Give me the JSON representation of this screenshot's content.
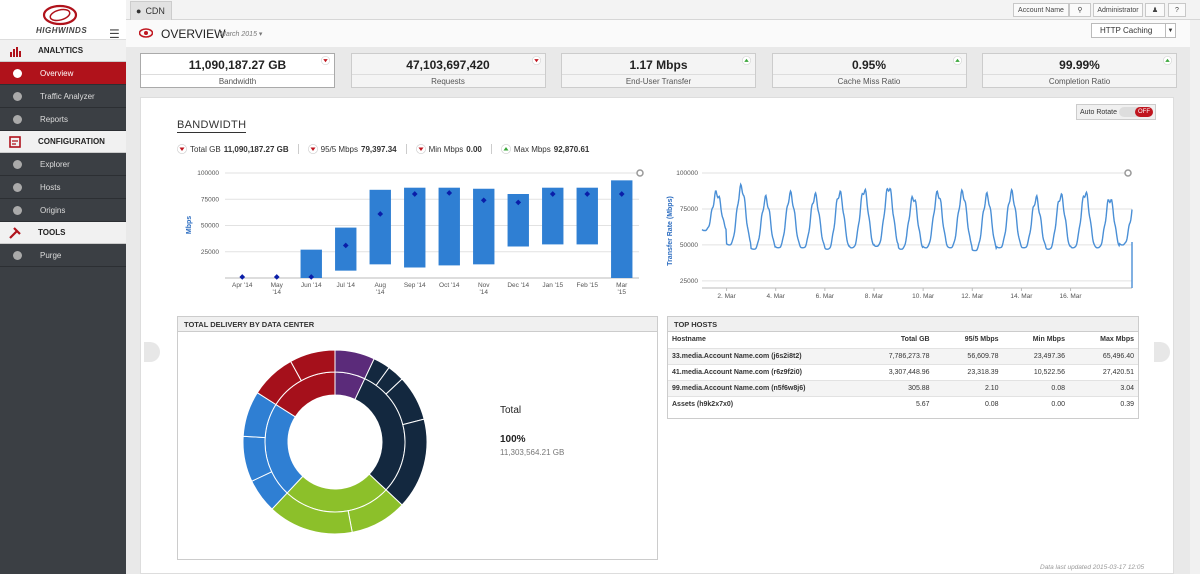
{
  "sidebar": {
    "logo_text": "HIGHWINDS",
    "sections": [
      {
        "label": "ANALYTICS",
        "icon": "bar-chart-icon",
        "items": [
          {
            "label": "Overview",
            "icon": "eye-icon",
            "active": true
          },
          {
            "label": "Traffic Analyzer",
            "icon": "pie-icon",
            "active": false
          },
          {
            "label": "Reports",
            "icon": "document-icon",
            "active": false
          }
        ]
      },
      {
        "label": "CONFIGURATION",
        "icon": "config-icon",
        "items": [
          {
            "label": "Explorer",
            "icon": "compass-icon",
            "active": false
          },
          {
            "label": "Hosts",
            "icon": "server-icon",
            "active": false
          },
          {
            "label": "Origins",
            "icon": "building-icon",
            "active": false
          }
        ]
      },
      {
        "label": "TOOLS",
        "icon": "tools-icon",
        "items": [
          {
            "label": "Purge",
            "icon": "basket-icon",
            "active": false
          }
        ]
      }
    ]
  },
  "topbar": {
    "tab_label": "CDN",
    "account_label": "Account Name",
    "admin_label": "Administrator",
    "help_label": "?"
  },
  "overview": {
    "title": "OVERVIEW",
    "period": "March 2015",
    "caching_select": "HTTP Caching"
  },
  "metrics": [
    {
      "value": "11,090,187.27 GB",
      "label": "Bandwidth",
      "trend": "down"
    },
    {
      "value": "47,103,697,420",
      "label": "Requests",
      "trend": "down"
    },
    {
      "value": "1.17 Mbps",
      "label": "End-User Transfer",
      "trend": "up"
    },
    {
      "value": "0.95%",
      "label": "Cache Miss Ratio",
      "trend": "up"
    },
    {
      "value": "99.99%",
      "label": "Completion Ratio",
      "trend": "up"
    }
  ],
  "auto_rotate": {
    "label": "Auto Rotate",
    "state": "OFF"
  },
  "bandwidth": {
    "title": "BANDWIDTH",
    "stats": [
      {
        "label": "Total GB",
        "value": "11,090,187.27 GB",
        "trend": "down"
      },
      {
        "label": "95/5 Mbps",
        "value": "79,397.34",
        "trend": "down"
      },
      {
        "label": "Min Mbps",
        "value": "0.00",
        "trend": "down"
      },
      {
        "label": "Max Mbps",
        "value": "92,870.61",
        "trend": "up"
      }
    ]
  },
  "chart_data": [
    {
      "type": "bar",
      "ylabel": "Mbps",
      "ylim": [
        0,
        100000
      ],
      "yticks": [
        "100000",
        "75000",
        "50000",
        "25000"
      ],
      "categories": [
        "Apr '14",
        "May '14",
        "Jun '14",
        "Jul '14",
        "Aug '14",
        "Sep '14",
        "Oct '14",
        "Nov '14",
        "Dec '14",
        "Jan '15",
        "Feb '15",
        "Mar '15"
      ],
      "low": [
        0,
        0,
        0,
        7000,
        13000,
        10000,
        12000,
        13000,
        30000,
        32000,
        32000,
        0
      ],
      "high": [
        0,
        0,
        27000,
        48000,
        84000,
        86000,
        86000,
        85000,
        80000,
        86000,
        86000,
        93000
      ],
      "mid": [
        1000,
        1000,
        1000,
        31000,
        61000,
        80000,
        81000,
        74000,
        72000,
        80000,
        80000,
        80000
      ]
    },
    {
      "type": "line",
      "ylabel": "Transfer Rate (Mbps)",
      "ylim": [
        20000,
        100000
      ],
      "yticks": [
        "100000",
        "75000",
        "50000",
        "25000"
      ],
      "xticks": [
        "2. Mar",
        "4. Mar",
        "6. Mar",
        "8. Mar",
        "10. Mar",
        "12. Mar",
        "14. Mar",
        "16. Mar"
      ],
      "days": 17.5,
      "daily_peaks": [
        86000,
        90000,
        82000,
        85000,
        84000,
        86000,
        88000,
        90000,
        83000,
        86000,
        86000,
        84000,
        86000,
        82000,
        84000,
        86000,
        82000,
        78000
      ],
      "daily_lows": [
        60000,
        50000,
        47000,
        48000,
        48000,
        47000,
        48000,
        49000,
        47000,
        48000,
        48000,
        46000,
        48000,
        48000,
        47000,
        48000,
        48000,
        50000
      ]
    },
    {
      "type": "pie",
      "inner": [
        {
          "value": 7,
          "color": "#5b2b7a"
        },
        {
          "value": 30,
          "color": "#13283f"
        },
        {
          "value": 25,
          "color": "#8cc02a"
        },
        {
          "value": 22,
          "color": "#2f7fd3"
        },
        {
          "value": 16,
          "color": "#a5101b"
        }
      ],
      "outer": [
        {
          "value": 7,
          "color": "#5b2b7a"
        },
        {
          "value": 3,
          "color": "#13283f"
        },
        {
          "value": 3,
          "color": "#13283f"
        },
        {
          "value": 8,
          "color": "#13283f"
        },
        {
          "value": 16,
          "color": "#13283f"
        },
        {
          "value": 10,
          "color": "#8cc02a"
        },
        {
          "value": 15,
          "color": "#8cc02a"
        },
        {
          "value": 6,
          "color": "#2f7fd3"
        },
        {
          "value": 8,
          "color": "#2f7fd3"
        },
        {
          "value": 8,
          "color": "#2f7fd3"
        },
        {
          "value": 8,
          "color": "#a5101b"
        },
        {
          "value": 8,
          "color": "#a5101b"
        }
      ]
    }
  ],
  "delivery": {
    "title": "TOTAL DELIVERY BY DATA CENTER",
    "total_label": "Total",
    "percent": "100%",
    "total_gb": "11,303,564.21 GB"
  },
  "hosts": {
    "title": "TOP HOSTS",
    "columns": [
      "Hostname",
      "Total GB",
      "95/5 Mbps",
      "Min Mbps",
      "Max Mbps"
    ],
    "rows": [
      [
        "33.media.Account Name.com (j6s2i8t2)",
        "7,786,273.78",
        "56,609.78",
        "23,497.36",
        "65,496.40"
      ],
      [
        "41.media.Account Name.com (r6z9f2i0)",
        "3,307,448.96",
        "23,318.39",
        "10,522.56",
        "27,420.51"
      ],
      [
        "99.media.Account Name.com (n5f6w8j6)",
        "305.88",
        "2.10",
        "0.08",
        "3.04"
      ],
      [
        "Assets (h9k2x7x0)",
        "5.67",
        "0.08",
        "0.00",
        "0.39"
      ]
    ]
  },
  "updated": "Data last updated 2015-03-17 12:05",
  "colors": {
    "accent": "#b0121b",
    "bar": "#2f7fd3",
    "line": "#4a8fd6",
    "up": "#3aa63a",
    "down": "#c0161f"
  }
}
